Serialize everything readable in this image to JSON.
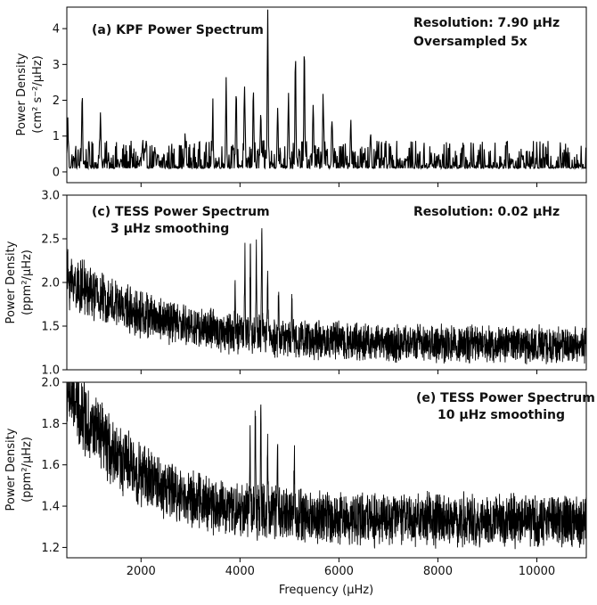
{
  "chart_data": [
    {
      "type": "line",
      "panel": "a",
      "ylabel_line1": "Power Density",
      "ylabel_line2": "(cm² s⁻²/μHz)",
      "xlim": [
        500,
        11000
      ],
      "ylim": [
        -0.3,
        4.6
      ],
      "yticks": [
        0,
        1,
        2,
        3,
        4
      ],
      "ytick_labels": [
        "0",
        "1",
        "2",
        "3",
        "4"
      ],
      "annotations": {
        "title": "(a) KPF Power Spectrum",
        "resolution": "Resolution: 7.90 μHz",
        "oversampled": "Oversampled 5x"
      },
      "series": [
        {
          "noise_floor": 0.1,
          "noise_amplitude": 0.35,
          "peaks": [
            {
              "x": 520,
              "y": 1.1
            },
            {
              "x": 810,
              "y": 2.0
            },
            {
              "x": 1180,
              "y": 1.5
            },
            {
              "x": 2030,
              "y": 0.6
            },
            {
              "x": 2900,
              "y": 0.7
            },
            {
              "x": 3450,
              "y": 1.3
            },
            {
              "x": 3720,
              "y": 2.2
            },
            {
              "x": 3920,
              "y": 2.0
            },
            {
              "x": 4090,
              "y": 1.7
            },
            {
              "x": 4270,
              "y": 2.2
            },
            {
              "x": 4420,
              "y": 1.5
            },
            {
              "x": 4560,
              "y": 4.0
            },
            {
              "x": 4760,
              "y": 1.6
            },
            {
              "x": 4980,
              "y": 2.1
            },
            {
              "x": 5120,
              "y": 2.6
            },
            {
              "x": 5300,
              "y": 3.0
            },
            {
              "x": 5480,
              "y": 1.8
            },
            {
              "x": 5680,
              "y": 2.0
            },
            {
              "x": 5860,
              "y": 1.3
            },
            {
              "x": 6240,
              "y": 1.3
            },
            {
              "x": 6640,
              "y": 1.0
            }
          ]
        }
      ]
    },
    {
      "type": "line",
      "panel": "c",
      "ylabel_line1": "Power Density",
      "ylabel_line2": "(ppm²/μHz)",
      "xlim": [
        500,
        11000
      ],
      "ylim": [
        1.0,
        3.0
      ],
      "yticks": [
        1.0,
        1.5,
        2.0,
        2.5,
        3.0
      ],
      "ytick_labels": [
        "1.0",
        "1.5",
        "2.0",
        "2.5",
        "3.0"
      ],
      "annotations": {
        "title": "(c) TESS Power Spectrum",
        "smoothing": "3 μHz smoothing",
        "resolution": "Resolution: 0.02 μHz"
      },
      "series": [
        {
          "baseline_start": 2.05,
          "baseline_end": 1.28,
          "decay_scale": 2000,
          "noise_amplitude": 0.18,
          "peaks": [
            {
              "x": 3900,
              "y": 2.0
            },
            {
              "x": 4100,
              "y": 2.3
            },
            {
              "x": 4210,
              "y": 2.45
            },
            {
              "x": 4330,
              "y": 2.4
            },
            {
              "x": 4440,
              "y": 2.62
            },
            {
              "x": 4560,
              "y": 2.2
            },
            {
              "x": 4780,
              "y": 1.9
            },
            {
              "x": 5050,
              "y": 1.9
            }
          ]
        }
      ]
    },
    {
      "type": "line",
      "panel": "e",
      "ylabel_line1": "Power Density",
      "ylabel_line2": "(ppm²/μHz)",
      "xlabel": "Frequency (μHz)",
      "xlim": [
        500,
        11000
      ],
      "ylim": [
        1.15,
        2.0
      ],
      "xticks": [
        2000,
        4000,
        6000,
        8000,
        10000
      ],
      "xtick_labels": [
        "2000",
        "4000",
        "6000",
        "8000",
        "10000"
      ],
      "yticks": [
        1.2,
        1.4,
        1.6,
        1.8,
        2.0
      ],
      "ytick_labels": [
        "1.2",
        "1.4",
        "1.6",
        "1.8",
        "2.0"
      ],
      "annotations": {
        "title": "(e) TESS Power Spectrum",
        "smoothing": "10 μHz smoothing"
      },
      "series": [
        {
          "baseline_start": 1.98,
          "baseline_end": 1.33,
          "decay_scale": 1400,
          "noise_amplitude": 0.11,
          "peaks": [
            {
              "x": 4200,
              "y": 1.75
            },
            {
              "x": 4310,
              "y": 1.8
            },
            {
              "x": 4420,
              "y": 1.97
            },
            {
              "x": 4560,
              "y": 1.7
            },
            {
              "x": 4760,
              "y": 1.65
            },
            {
              "x": 5100,
              "y": 1.65
            }
          ]
        }
      ]
    }
  ]
}
